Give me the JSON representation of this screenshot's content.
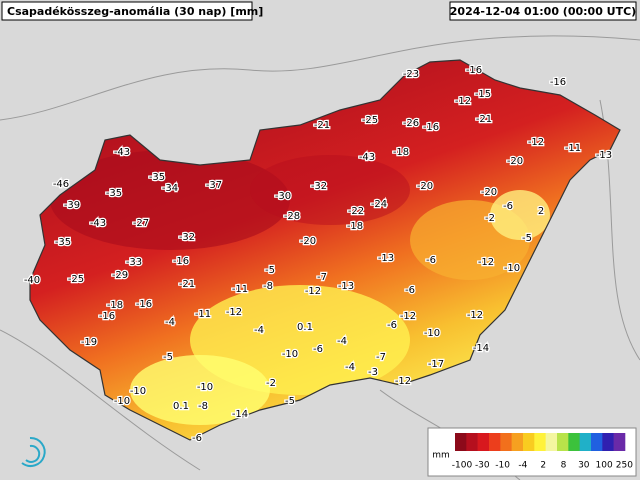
{
  "header": {
    "title": "Csapadékösszeg-anomália (30 nap) [mm]",
    "timestamp": "2024-12-04 01:00 (00:00 UTC)"
  },
  "legend": {
    "unit": "mm",
    "ticks": [
      -100,
      -30,
      -10,
      -4,
      2,
      8,
      30,
      100,
      250
    ],
    "colors": [
      "#8c0a1a",
      "#b50f1e",
      "#d8181e",
      "#ec3e1c",
      "#f2701c",
      "#f6a020",
      "#f9cc20",
      "#fff23a",
      "#f4f6a0",
      "#b8e34a",
      "#3cc23c",
      "#20b0c8",
      "#2060e0",
      "#3020b0",
      "#6a2aa8"
    ]
  },
  "stations": [
    {
      "value": -23
    },
    {
      "value": -16
    },
    {
      "value": -16
    },
    {
      "value": -12
    },
    {
      "value": -15
    },
    {
      "value": -21
    },
    {
      "value": -25
    },
    {
      "value": -26
    },
    {
      "value": -16
    },
    {
      "value": -21
    },
    {
      "value": -43
    },
    {
      "value": -43
    },
    {
      "value": -18
    },
    {
      "value": -12
    },
    {
      "value": -11
    },
    {
      "value": -13
    },
    {
      "value": -20
    },
    {
      "value": -46
    },
    {
      "value": -35
    },
    {
      "value": -35
    },
    {
      "value": -34
    },
    {
      "value": -37
    },
    {
      "value": -30
    },
    {
      "value": -32
    },
    {
      "value": -20
    },
    {
      "value": -20
    },
    {
      "value": -6
    },
    {
      "value": 2
    },
    {
      "value": -39
    },
    {
      "value": -43
    },
    {
      "value": -27
    },
    {
      "value": -28
    },
    {
      "value": -22
    },
    {
      "value": -24
    },
    {
      "value": -18
    },
    {
      "value": -2
    },
    {
      "value": -35
    },
    {
      "value": -32
    },
    {
      "value": -20
    },
    {
      "value": -5
    },
    {
      "value": -33
    },
    {
      "value": -16
    },
    {
      "value": -13
    },
    {
      "value": -6
    },
    {
      "value": -12
    },
    {
      "value": -10
    },
    {
      "value": -40
    },
    {
      "value": -25
    },
    {
      "value": -29
    },
    {
      "value": -21
    },
    {
      "value": -5
    },
    {
      "value": -7
    },
    {
      "value": -8
    },
    {
      "value": -11
    },
    {
      "value": -12
    },
    {
      "value": -13
    },
    {
      "value": -6
    },
    {
      "value": -18
    },
    {
      "value": -16
    },
    {
      "value": -12
    },
    {
      "value": -16
    },
    {
      "value": -4
    },
    {
      "value": -11
    },
    {
      "value": -12
    },
    {
      "value": -6
    },
    {
      "value": -12
    },
    {
      "value": 0.1
    },
    {
      "value": -4
    },
    {
      "value": -4
    },
    {
      "value": -10
    },
    {
      "value": -19
    },
    {
      "value": -5
    },
    {
      "value": -10
    },
    {
      "value": -6
    },
    {
      "value": -7
    },
    {
      "value": -14
    },
    {
      "value": -17
    },
    {
      "value": -4
    },
    {
      "value": -3
    },
    {
      "value": -12
    },
    {
      "value": -10
    },
    {
      "value": -2
    },
    {
      "value": -10
    },
    {
      "value": -10
    },
    {
      "value": 0.1
    },
    {
      "value": -8
    },
    {
      "value": -5
    },
    {
      "value": -14
    },
    {
      "value": -6
    }
  ]
}
